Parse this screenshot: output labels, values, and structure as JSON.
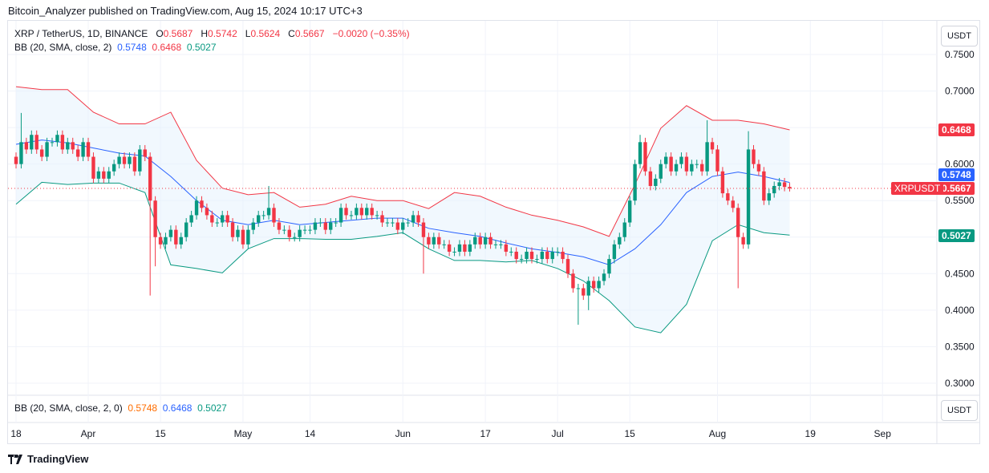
{
  "header": {
    "published": "Bitcoin_Analyzer published on TradingView.com, Aug 15, 2024 10:17 UTC+3"
  },
  "legend": {
    "symbol": "XRP / TetherUS, 1D, BINANCE",
    "o_label": "O",
    "o": "0.5687",
    "h_label": "H",
    "h": "0.5742",
    "l_label": "L",
    "l": "0.5624",
    "c_label": "C",
    "c": "0.5667",
    "change": "−0.0020 (−0.35%)",
    "bb_label": "BB (20, SMA, close, 2)",
    "bb_basis": "0.5748",
    "bb_upper": "0.6468",
    "bb_lower": "0.5027"
  },
  "indicator_pane": {
    "label": "BB (20, SMA, close, 2, 0)",
    "basis": "0.5748",
    "upper": "0.6468",
    "lower": "0.5027"
  },
  "currency": "USDT",
  "price_tags": {
    "symbol": "XRPUSDT",
    "last": "0.5667",
    "basis": "0.5748",
    "upper": "0.6468",
    "lower": "0.5027"
  },
  "footer": {
    "brand": "TradingView"
  },
  "colors": {
    "up": "#089981",
    "down": "#f23645",
    "basis": "#2962ff",
    "upper": "#f23645",
    "lower": "#089981",
    "fill": "#e3f2fd"
  },
  "chart_data": {
    "type": "candlestick",
    "title": "XRP / TetherUS, 1D, BINANCE",
    "ylim": [
      0.28,
      0.77
    ],
    "y_ticks": [
      "0.7500",
      "0.7000",
      "0.6500",
      "0.6000",
      "0.5500",
      "0.5000",
      "0.4500",
      "0.4000",
      "0.3500",
      "0.3000"
    ],
    "x_ticks": [
      {
        "label": "18",
        "day": 0
      },
      {
        "label": "Apr",
        "day": 14
      },
      {
        "label": "15",
        "day": 28
      },
      {
        "label": "May",
        "day": 44
      },
      {
        "label": "14",
        "day": 57
      },
      {
        "label": "Jun",
        "day": 75
      },
      {
        "label": "17",
        "day": 91
      },
      {
        "label": "Jul",
        "day": 105
      },
      {
        "label": "15",
        "day": 119
      },
      {
        "label": "Aug",
        "day": 136
      },
      {
        "label": "19",
        "day": 154
      },
      {
        "label": "Sep",
        "day": 168
      }
    ],
    "start_date": "2024-03-18",
    "first_open": 0.61,
    "closes": [
      0.6,
      0.63,
      0.62,
      0.64,
      0.62,
      0.61,
      0.63,
      0.63,
      0.64,
      0.62,
      0.63,
      0.62,
      0.61,
      0.63,
      0.61,
      0.58,
      0.59,
      0.58,
      0.59,
      0.6,
      0.61,
      0.6,
      0.61,
      0.59,
      0.62,
      0.61,
      0.55,
      0.5,
      0.49,
      0.5,
      0.51,
      0.49,
      0.5,
      0.52,
      0.53,
      0.55,
      0.54,
      0.53,
      0.52,
      0.52,
      0.53,
      0.52,
      0.5,
      0.51,
      0.49,
      0.51,
      0.52,
      0.53,
      0.53,
      0.54,
      0.52,
      0.51,
      0.51,
      0.5,
      0.5,
      0.51,
      0.51,
      0.51,
      0.52,
      0.52,
      0.51,
      0.52,
      0.52,
      0.54,
      0.53,
      0.53,
      0.54,
      0.53,
      0.54,
      0.53,
      0.53,
      0.52,
      0.52,
      0.52,
      0.51,
      0.52,
      0.52,
      0.53,
      0.52,
      0.5,
      0.49,
      0.5,
      0.49,
      0.49,
      0.48,
      0.48,
      0.49,
      0.48,
      0.49,
      0.5,
      0.49,
      0.5,
      0.49,
      0.49,
      0.49,
      0.48,
      0.48,
      0.47,
      0.47,
      0.48,
      0.47,
      0.47,
      0.48,
      0.47,
      0.48,
      0.48,
      0.47,
      0.45,
      0.43,
      0.43,
      0.42,
      0.44,
      0.43,
      0.44,
      0.45,
      0.47,
      0.49,
      0.5,
      0.52,
      0.55,
      0.6,
      0.63,
      0.59,
      0.57,
      0.58,
      0.6,
      0.61,
      0.59,
      0.6,
      0.61,
      0.59,
      0.6,
      0.6,
      0.59,
      0.63,
      0.62,
      0.59,
      0.56,
      0.55,
      0.54,
      0.5,
      0.49,
      0.62,
      0.6,
      0.59,
      0.55,
      0.56,
      0.57,
      0.575,
      0.5687,
      0.5667
    ],
    "long_wicks": [
      {
        "day": 1,
        "high": 0.67
      },
      {
        "day": 26,
        "low": 0.42
      },
      {
        "day": 27,
        "low": 0.46
      },
      {
        "day": 49,
        "high": 0.57
      },
      {
        "day": 79,
        "low": 0.45
      },
      {
        "day": 109,
        "low": 0.38
      },
      {
        "day": 111,
        "low": 0.4
      },
      {
        "day": 121,
        "high": 0.64
      },
      {
        "day": 134,
        "high": 0.66
      },
      {
        "day": 140,
        "low": 0.43
      },
      {
        "day": 142,
        "high": 0.645
      },
      {
        "day": 150,
        "high": 0.5742,
        "low": 0.5624
      }
    ],
    "bb_days": [
      0,
      5,
      10,
      15,
      20,
      25,
      30,
      35,
      40,
      45,
      50,
      55,
      60,
      65,
      70,
      75,
      80,
      85,
      90,
      95,
      100,
      105,
      110,
      115,
      120,
      125,
      130,
      135,
      140,
      145,
      150
    ],
    "bb_upper": [
      0.706,
      0.702,
      0.702,
      0.671,
      0.655,
      0.655,
      0.671,
      0.605,
      0.567,
      0.558,
      0.561,
      0.541,
      0.545,
      0.556,
      0.55,
      0.55,
      0.539,
      0.561,
      0.556,
      0.541,
      0.53,
      0.523,
      0.514,
      0.501,
      0.572,
      0.649,
      0.68,
      0.66,
      0.66,
      0.655,
      0.6468
    ],
    "bb_basis": [
      0.627,
      0.633,
      0.629,
      0.622,
      0.615,
      0.611,
      0.583,
      0.55,
      0.523,
      0.517,
      0.523,
      0.517,
      0.52,
      0.523,
      0.526,
      0.526,
      0.512,
      0.506,
      0.501,
      0.492,
      0.484,
      0.479,
      0.473,
      0.462,
      0.484,
      0.517,
      0.561,
      0.583,
      0.589,
      0.583,
      0.5748
    ],
    "bb_lower": [
      0.545,
      0.575,
      0.572,
      0.574,
      0.574,
      0.561,
      0.462,
      0.457,
      0.451,
      0.484,
      0.498,
      0.498,
      0.497,
      0.497,
      0.501,
      0.506,
      0.484,
      0.468,
      0.468,
      0.466,
      0.468,
      0.457,
      0.44,
      0.413,
      0.377,
      0.369,
      0.408,
      0.495,
      0.517,
      0.506,
      0.5027
    ]
  }
}
